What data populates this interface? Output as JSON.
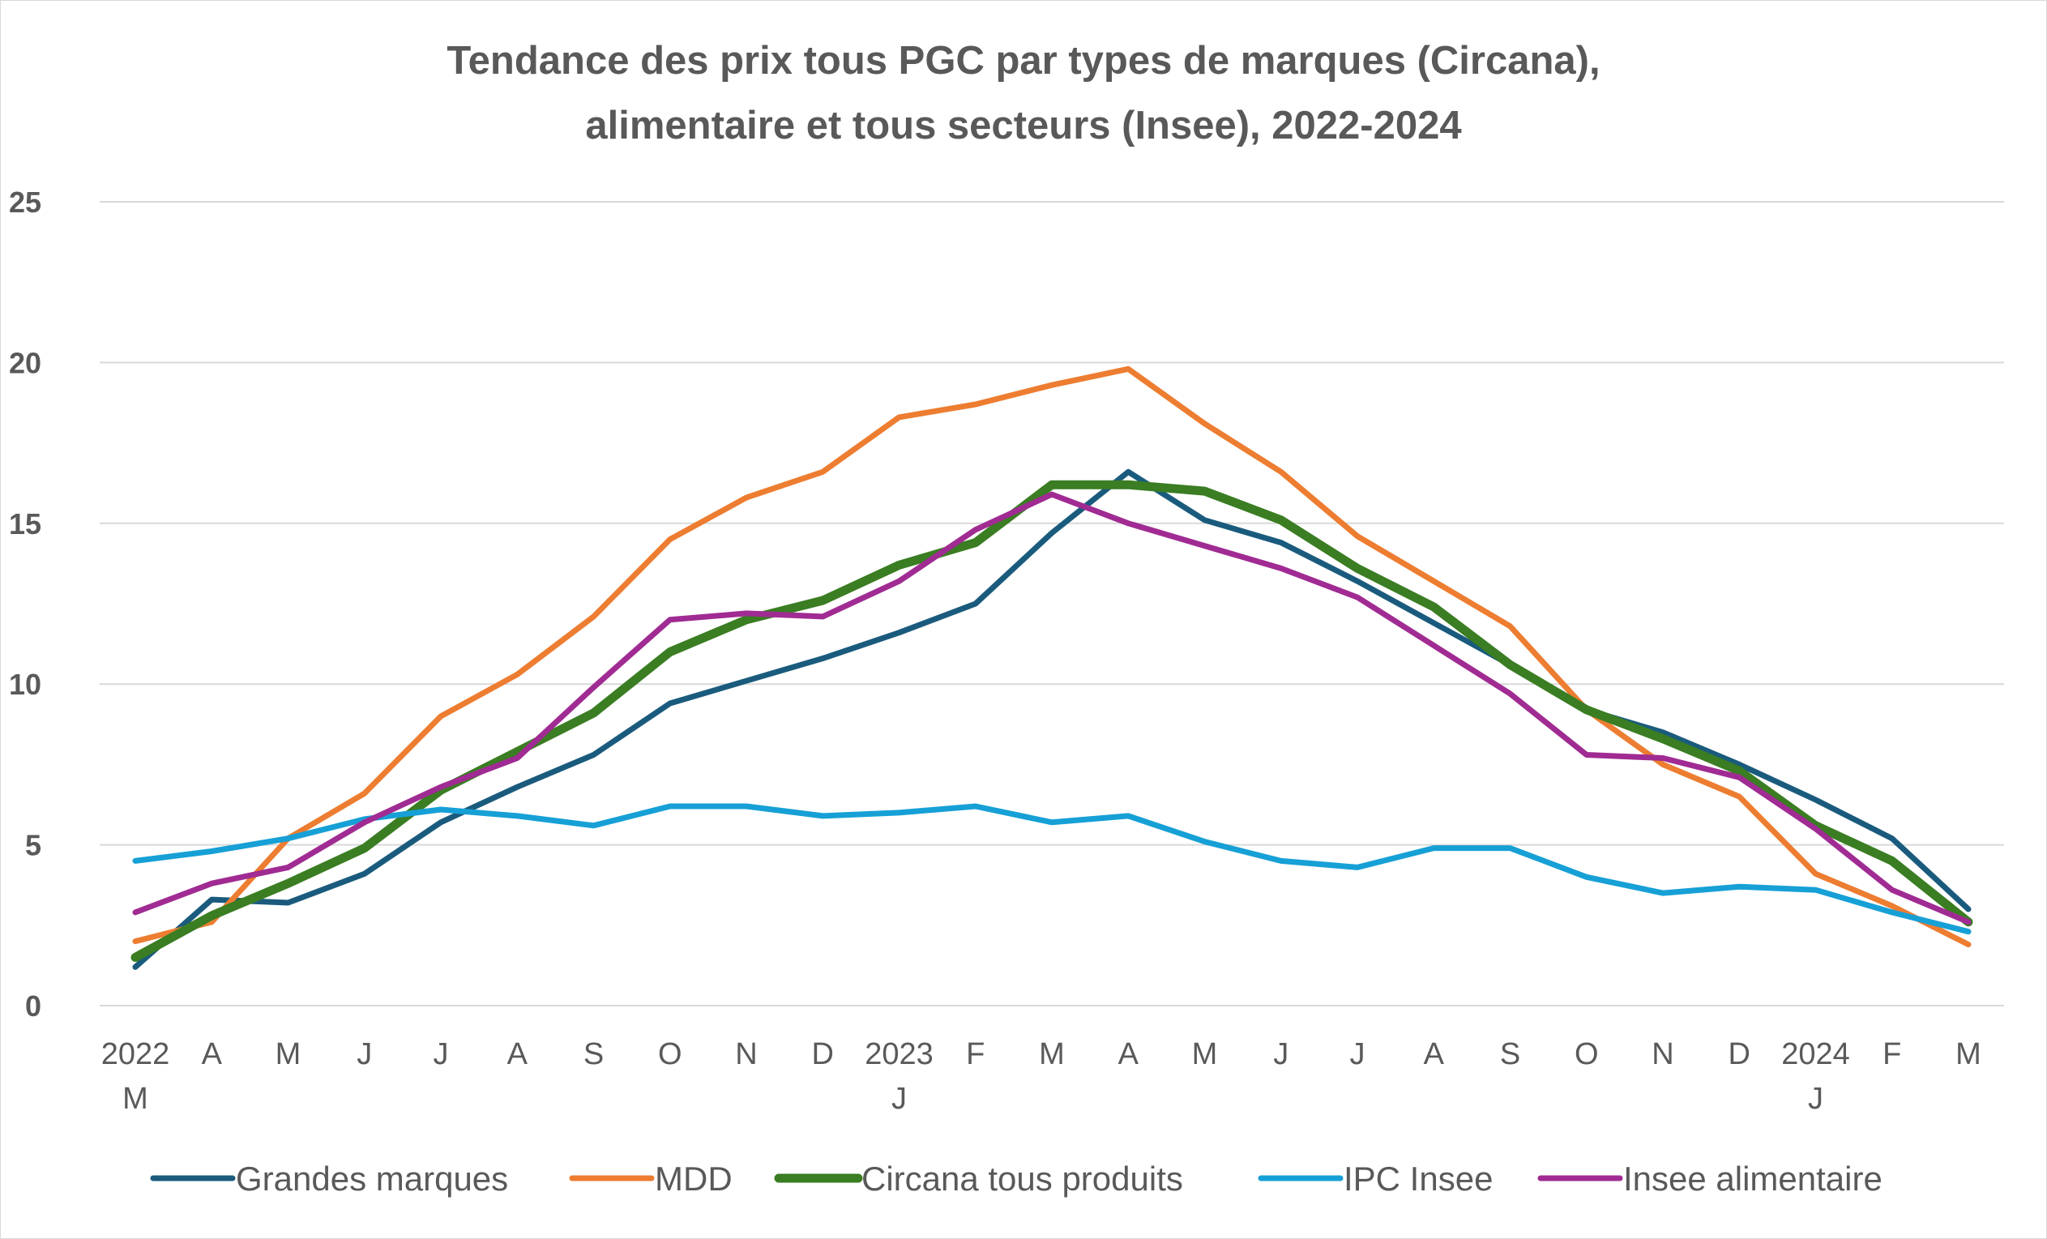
{
  "chart_data": {
    "type": "line",
    "title": "Tendance des prix tous PGC par types de marques (Circana),",
    "subtitle": "alimentaire et tous secteurs (Insee), 2022-2024",
    "ylim": [
      0,
      25
    ],
    "yticks": [
      0,
      5,
      10,
      15,
      20,
      25
    ],
    "grid": true,
    "legend_position": "bottom",
    "categories": [
      "M",
      "A",
      "M",
      "J",
      "J",
      "A",
      "S",
      "O",
      "N",
      "D",
      "J",
      "F",
      "M",
      "A",
      "M",
      "J",
      "J",
      "A",
      "S",
      "O",
      "N",
      "D",
      "J",
      "F",
      "M"
    ],
    "year_labels": [
      {
        "index": 0,
        "label": "2022"
      },
      {
        "index": 10,
        "label": "2023"
      },
      {
        "index": 22,
        "label": "2024"
      }
    ],
    "series": [
      {
        "name": "Grandes marques",
        "color": "#1a5b7d",
        "width": 7,
        "values": [
          1.2,
          3.3,
          3.2,
          4.1,
          5.7,
          6.8,
          7.8,
          9.4,
          10.1,
          10.8,
          11.6,
          12.5,
          14.7,
          16.6,
          15.1,
          14.4,
          13.2,
          11.9,
          10.6,
          9.2,
          8.5,
          7.5,
          6.4,
          5.2,
          3.0
        ]
      },
      {
        "name": "MDD",
        "color": "#ed7d31",
        "width": 7,
        "values": [
          2.0,
          2.6,
          5.2,
          6.6,
          9.0,
          10.3,
          12.1,
          14.5,
          15.8,
          16.6,
          18.3,
          18.7,
          19.3,
          19.8,
          18.1,
          16.6,
          14.6,
          13.2,
          11.8,
          9.2,
          7.5,
          6.5,
          4.1,
          3.1,
          1.9
        ]
      },
      {
        "name": "Circana tous produits",
        "color": "#3a7d22",
        "width": 11,
        "values": [
          1.5,
          2.8,
          3.8,
          4.9,
          6.7,
          7.9,
          9.1,
          11.0,
          12.0,
          12.6,
          13.7,
          14.4,
          16.2,
          16.2,
          16.0,
          15.1,
          13.6,
          12.4,
          10.6,
          9.2,
          8.3,
          7.3,
          5.6,
          4.5,
          2.6
        ]
      },
      {
        "name": "IPC Insee",
        "color": "#16a0d6",
        "width": 7,
        "values": [
          4.5,
          4.8,
          5.2,
          5.8,
          6.1,
          5.9,
          5.6,
          6.2,
          6.2,
          5.9,
          6.0,
          6.2,
          5.7,
          5.9,
          5.1,
          4.5,
          4.3,
          4.9,
          4.9,
          4.0,
          3.5,
          3.7,
          3.6,
          2.9,
          2.3
        ]
      },
      {
        "name": "Insee alimentaire",
        "color": "#a02b93",
        "width": 7,
        "values": [
          2.9,
          3.8,
          4.3,
          5.7,
          6.8,
          7.7,
          9.9,
          12.0,
          12.2,
          12.1,
          13.2,
          14.8,
          15.9,
          15.0,
          14.3,
          13.6,
          12.7,
          11.2,
          9.7,
          7.8,
          7.7,
          7.1,
          5.5,
          3.6,
          2.6
        ]
      }
    ]
  }
}
